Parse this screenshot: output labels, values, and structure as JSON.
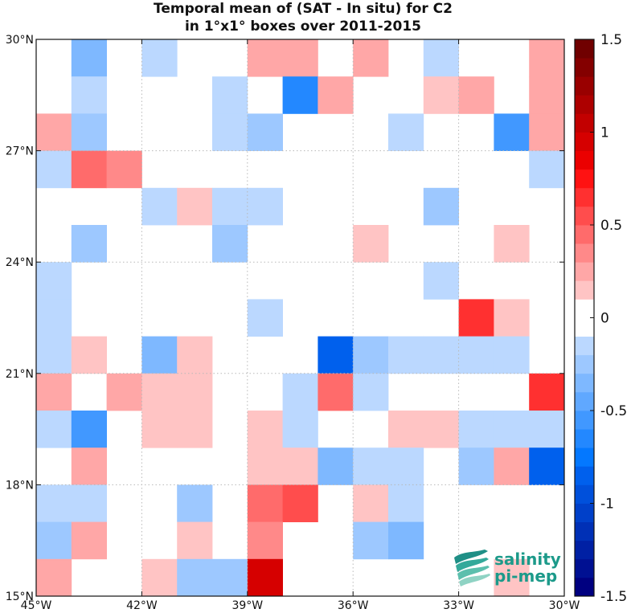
{
  "chart_data": {
    "type": "heatmap",
    "title_lines": [
      "Temporal mean of (SAT - In situ) for C2",
      "in 1°x1° boxes over 2011-2015"
    ],
    "x_range": [
      -45,
      -30
    ],
    "y_range": [
      15,
      30
    ],
    "x_ticks": [
      {
        "value": -45,
        "label": "45°W"
      },
      {
        "value": -42,
        "label": "42°W"
      },
      {
        "value": -39,
        "label": "39°W"
      },
      {
        "value": -36,
        "label": "36°W"
      },
      {
        "value": -33,
        "label": "33°W"
      },
      {
        "value": -30,
        "label": "30°W"
      }
    ],
    "y_ticks": [
      {
        "value": 15,
        "label": "15°N"
      },
      {
        "value": 18,
        "label": "18°N"
      },
      {
        "value": 21,
        "label": "21°N"
      },
      {
        "value": 24,
        "label": "24°N"
      },
      {
        "value": 27,
        "label": "27°N"
      },
      {
        "value": 30,
        "label": "30°N"
      }
    ],
    "grid": true,
    "colorbar": {
      "min": -1.5,
      "max": 1.5,
      "step": 0.1,
      "ticks": [
        {
          "value": 1.5,
          "label": "1.5"
        },
        {
          "value": 1,
          "label": "1"
        },
        {
          "value": 0.5,
          "label": "0.5"
        },
        {
          "value": 0,
          "label": "0"
        },
        {
          "value": -0.5,
          "label": "-0.5"
        },
        {
          "value": -1,
          "label": "-1"
        },
        {
          "value": -1.5,
          "label": "-1.5"
        }
      ]
    },
    "cells": [
      {
        "lon": -44,
        "lat": 29,
        "value": -0.35
      },
      {
        "lon": -42,
        "lat": 29,
        "value": -0.15
      },
      {
        "lon": -39,
        "lat": 29,
        "value": 0.25
      },
      {
        "lon": -38,
        "lat": 29,
        "value": 0.25
      },
      {
        "lon": -36,
        "lat": 29,
        "value": 0.25
      },
      {
        "lon": -34,
        "lat": 29,
        "value": -0.15
      },
      {
        "lon": -31,
        "lat": 29,
        "value": 0.25
      },
      {
        "lon": -44,
        "lat": 28,
        "value": -0.15
      },
      {
        "lon": -40,
        "lat": 28,
        "value": -0.15
      },
      {
        "lon": -38,
        "lat": 28,
        "value": -0.65
      },
      {
        "lon": -37,
        "lat": 28,
        "value": 0.3
      },
      {
        "lon": -34,
        "lat": 28,
        "value": 0.15
      },
      {
        "lon": -33,
        "lat": 28,
        "value": 0.25
      },
      {
        "lon": -31,
        "lat": 28,
        "value": 0.25
      },
      {
        "lon": -45,
        "lat": 27,
        "value": 0.3
      },
      {
        "lon": -44,
        "lat": 27,
        "value": -0.25
      },
      {
        "lon": -40,
        "lat": 27,
        "value": -0.15
      },
      {
        "lon": -39,
        "lat": 27,
        "value": -0.25
      },
      {
        "lon": -35,
        "lat": 27,
        "value": -0.15
      },
      {
        "lon": -32,
        "lat": 27,
        "value": -0.55
      },
      {
        "lon": -31,
        "lat": 27,
        "value": 0.25
      },
      {
        "lon": -45,
        "lat": 26,
        "value": -0.15
      },
      {
        "lon": -44,
        "lat": 26,
        "value": 0.45
      },
      {
        "lon": -43,
        "lat": 26,
        "value": 0.35
      },
      {
        "lon": -31,
        "lat": 26,
        "value": -0.15
      },
      {
        "lon": -42,
        "lat": 25,
        "value": -0.15
      },
      {
        "lon": -41,
        "lat": 25,
        "value": 0.15
      },
      {
        "lon": -40,
        "lat": 25,
        "value": -0.15
      },
      {
        "lon": -39,
        "lat": 25,
        "value": -0.15
      },
      {
        "lon": -34,
        "lat": 25,
        "value": -0.25
      },
      {
        "lon": -44,
        "lat": 24,
        "value": -0.25
      },
      {
        "lon": -40,
        "lat": 24,
        "value": -0.25
      },
      {
        "lon": -36,
        "lat": 24,
        "value": 0.15
      },
      {
        "lon": -32,
        "lat": 24,
        "value": 0.15
      },
      {
        "lon": -45,
        "lat": 23,
        "value": -0.15
      },
      {
        "lon": -34,
        "lat": 23,
        "value": -0.15
      },
      {
        "lon": -45,
        "lat": 22,
        "value": -0.15
      },
      {
        "lon": -39,
        "lat": 22,
        "value": -0.15
      },
      {
        "lon": -33,
        "lat": 22,
        "value": 0.65
      },
      {
        "lon": -32,
        "lat": 22,
        "value": 0.2
      },
      {
        "lon": -45,
        "lat": 21,
        "value": -0.15
      },
      {
        "lon": -44,
        "lat": 21,
        "value": 0.15
      },
      {
        "lon": -42,
        "lat": 21,
        "value": -0.35
      },
      {
        "lon": -41,
        "lat": 21,
        "value": 0.2
      },
      {
        "lon": -37,
        "lat": 21,
        "value": -0.85
      },
      {
        "lon": -36,
        "lat": 21,
        "value": -0.25
      },
      {
        "lon": -35,
        "lat": 21,
        "value": -0.15
      },
      {
        "lon": -34,
        "lat": 21,
        "value": -0.15
      },
      {
        "lon": -33,
        "lat": 21,
        "value": -0.15
      },
      {
        "lon": -32,
        "lat": 21,
        "value": -0.15
      },
      {
        "lon": -45,
        "lat": 20,
        "value": 0.3
      },
      {
        "lon": -43,
        "lat": 20,
        "value": 0.3
      },
      {
        "lon": -42,
        "lat": 20,
        "value": 0.15
      },
      {
        "lon": -41,
        "lat": 20,
        "value": 0.15
      },
      {
        "lon": -38,
        "lat": 20,
        "value": -0.15
      },
      {
        "lon": -37,
        "lat": 20,
        "value": 0.45
      },
      {
        "lon": -36,
        "lat": 20,
        "value": -0.15
      },
      {
        "lon": -31,
        "lat": 20,
        "value": 0.65
      },
      {
        "lon": -45,
        "lat": 19,
        "value": -0.15
      },
      {
        "lon": -44,
        "lat": 19,
        "value": -0.55
      },
      {
        "lon": -42,
        "lat": 19,
        "value": 0.15
      },
      {
        "lon": -41,
        "lat": 19,
        "value": 0.15
      },
      {
        "lon": -39,
        "lat": 19,
        "value": 0.15
      },
      {
        "lon": -38,
        "lat": 19,
        "value": -0.15
      },
      {
        "lon": -35,
        "lat": 19,
        "value": 0.15
      },
      {
        "lon": -34,
        "lat": 19,
        "value": 0.15
      },
      {
        "lon": -33,
        "lat": 19,
        "value": -0.15
      },
      {
        "lon": -32,
        "lat": 19,
        "value": -0.15
      },
      {
        "lon": -31,
        "lat": 19,
        "value": -0.15
      },
      {
        "lon": -44,
        "lat": 18,
        "value": 0.3
      },
      {
        "lon": -39,
        "lat": 18,
        "value": 0.15
      },
      {
        "lon": -38,
        "lat": 18,
        "value": 0.15
      },
      {
        "lon": -37,
        "lat": 18,
        "value": -0.35
      },
      {
        "lon": -36,
        "lat": 18,
        "value": -0.15
      },
      {
        "lon": -35,
        "lat": 18,
        "value": -0.15
      },
      {
        "lon": -33,
        "lat": 18,
        "value": -0.25
      },
      {
        "lon": -32,
        "lat": 18,
        "value": 0.3
      },
      {
        "lon": -31,
        "lat": 18,
        "value": -0.9
      },
      {
        "lon": -45,
        "lat": 17,
        "value": -0.15
      },
      {
        "lon": -44,
        "lat": 17,
        "value": -0.15
      },
      {
        "lon": -41,
        "lat": 17,
        "value": -0.25
      },
      {
        "lon": -39,
        "lat": 17,
        "value": 0.45
      },
      {
        "lon": -38,
        "lat": 17,
        "value": 0.55
      },
      {
        "lon": -36,
        "lat": 17,
        "value": 0.15
      },
      {
        "lon": -35,
        "lat": 17,
        "value": -0.15
      },
      {
        "lon": -45,
        "lat": 16,
        "value": -0.25
      },
      {
        "lon": -44,
        "lat": 16,
        "value": 0.3
      },
      {
        "lon": -41,
        "lat": 16,
        "value": 0.15
      },
      {
        "lon": -39,
        "lat": 16,
        "value": 0.35
      },
      {
        "lon": -36,
        "lat": 16,
        "value": -0.25
      },
      {
        "lon": -35,
        "lat": 16,
        "value": -0.35
      },
      {
        "lon": -45,
        "lat": 15,
        "value": 0.3
      },
      {
        "lon": -42,
        "lat": 15,
        "value": 0.15
      },
      {
        "lon": -41,
        "lat": 15,
        "value": -0.25
      },
      {
        "lon": -40,
        "lat": 15,
        "value": -0.25
      },
      {
        "lon": -39,
        "lat": 15,
        "value": 0.95
      },
      {
        "lon": -32,
        "lat": 15,
        "value": 0.15
      }
    ]
  },
  "logo": {
    "line1": "salinity",
    "line2": "pi-mep"
  },
  "colors": {
    "text": "#111111",
    "grid": "#b8b8b8",
    "logo_text": "#1c9a8a",
    "logo_waves": "#2a9d8f"
  }
}
